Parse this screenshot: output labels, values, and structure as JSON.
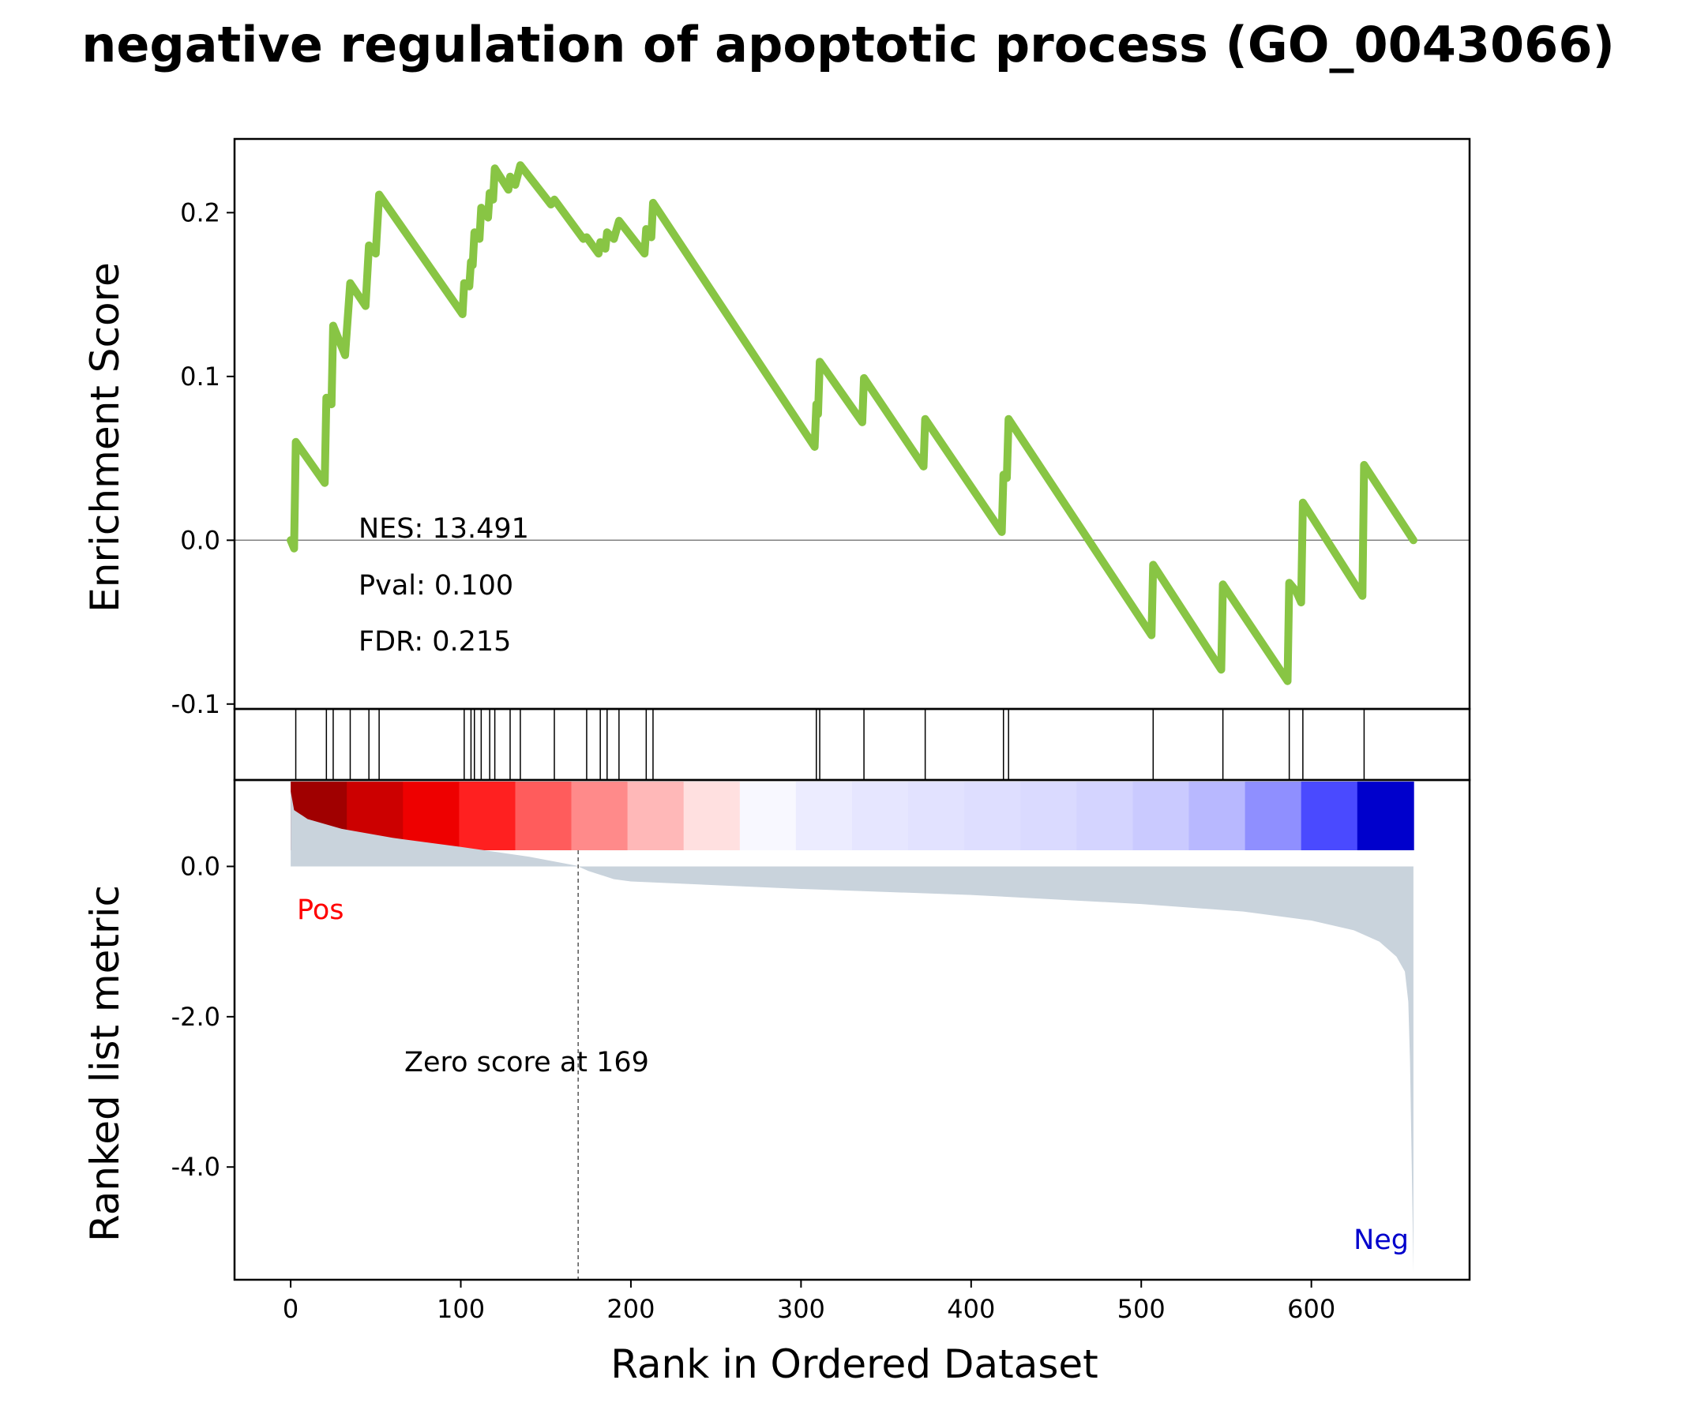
{
  "chart_data": {
    "type": "line",
    "title": "negative regulation of apoptotic process (GO_0043066)",
    "xlabel": "Rank in Ordered Dataset",
    "xlim": [
      -33,
      693
    ],
    "xticks": [
      "0",
      "100",
      "200",
      "300",
      "400",
      "500",
      "600"
    ],
    "xtick_values": [
      0,
      100,
      200,
      300,
      400,
      500,
      600
    ],
    "top_panel": {
      "ylabel": "Enrichment Score",
      "ylim": [
        -0.103,
        0.245
      ],
      "yticks": [
        "-0.1",
        "0.0",
        "0.1",
        "0.2"
      ],
      "ytick_values": [
        -0.1,
        0.0,
        0.1,
        0.2
      ],
      "line_color": "#88c544",
      "zero_line": true,
      "es_curve": [
        [
          0,
          0.0
        ],
        [
          2,
          -0.005
        ],
        [
          3,
          0.06
        ],
        [
          20,
          0.035
        ],
        [
          21,
          0.087
        ],
        [
          24,
          0.083
        ],
        [
          25,
          0.131
        ],
        [
          32,
          0.113
        ],
        [
          35,
          0.157
        ],
        [
          44,
          0.143
        ],
        [
          46,
          0.18
        ],
        [
          50,
          0.175
        ],
        [
          52,
          0.211
        ],
        [
          101,
          0.138
        ],
        [
          102,
          0.157
        ],
        [
          105,
          0.155
        ],
        [
          106,
          0.17
        ],
        [
          107,
          0.168
        ],
        [
          108,
          0.188
        ],
        [
          111,
          0.184
        ],
        [
          112,
          0.203
        ],
        [
          116,
          0.197
        ],
        [
          117,
          0.212
        ],
        [
          119,
          0.208
        ],
        [
          120,
          0.227
        ],
        [
          128,
          0.214
        ],
        [
          129,
          0.222
        ],
        [
          132,
          0.217
        ],
        [
          135,
          0.229
        ],
        [
          153,
          0.205
        ],
        [
          155,
          0.208
        ],
        [
          172,
          0.184
        ],
        [
          174,
          0.185
        ],
        [
          181,
          0.175
        ],
        [
          182,
          0.182
        ],
        [
          185,
          0.178
        ],
        [
          186,
          0.188
        ],
        [
          190,
          0.184
        ],
        [
          193,
          0.195
        ],
        [
          208,
          0.175
        ],
        [
          209,
          0.19
        ],
        [
          212,
          0.185
        ],
        [
          213,
          0.206
        ],
        [
          308,
          0.057
        ],
        [
          309,
          0.083
        ],
        [
          310,
          0.077
        ],
        [
          311,
          0.109
        ],
        [
          336,
          0.072
        ],
        [
          337,
          0.099
        ],
        [
          372,
          0.045
        ],
        [
          373,
          0.074
        ],
        [
          418,
          0.005
        ],
        [
          419,
          0.04
        ],
        [
          421,
          0.038
        ],
        [
          422,
          0.074
        ],
        [
          506,
          -0.058
        ],
        [
          507,
          -0.015
        ],
        [
          547,
          -0.079
        ],
        [
          548,
          -0.027
        ],
        [
          586,
          -0.086
        ],
        [
          587,
          -0.026
        ],
        [
          591,
          -0.031
        ],
        [
          594,
          -0.038
        ],
        [
          595,
          0.023
        ],
        [
          630,
          -0.034
        ],
        [
          631,
          0.046
        ],
        [
          660,
          0.0
        ]
      ],
      "stats": {
        "nes": "NES: 13.491",
        "pval": "Pval: 0.100",
        "fdr": "FDR: 0.215"
      }
    },
    "hits": [
      3,
      21,
      25,
      35,
      46,
      52,
      102,
      106,
      108,
      112,
      117,
      120,
      129,
      135,
      155,
      174,
      182,
      186,
      193,
      209,
      213,
      309,
      311,
      337,
      373,
      419,
      422,
      507,
      548,
      587,
      595,
      631
    ],
    "heatmap_colors": [
      "#a00000",
      "#cc0000",
      "#ee0000",
      "#ff2020",
      "#ff5c5c",
      "#ff8a8a",
      "#ffb8b8",
      "#ffe0e0",
      "#f8f8ff",
      "#ececff",
      "#e6e6ff",
      "#e2e2ff",
      "#dedeff",
      "#dadaff",
      "#d4d4ff",
      "#cacaff",
      "#b8b8ff",
      "#8f8fff",
      "#4a4aff",
      "#0000cc"
    ],
    "bottom_panel": {
      "ylabel": "Ranked list metric",
      "ylim": [
        -5.5,
        1.15
      ],
      "yticks": [
        "-4.0",
        "-2.0",
        "0.0"
      ],
      "ytick_values": [
        -4.0,
        -2.0,
        0.0
      ],
      "fill_color": "#c9d3dc",
      "metric_curve": [
        [
          0,
          1.0
        ],
        [
          2,
          0.75
        ],
        [
          10,
          0.63
        ],
        [
          30,
          0.5
        ],
        [
          60,
          0.38
        ],
        [
          100,
          0.26
        ],
        [
          140,
          0.13
        ],
        [
          168,
          0.01
        ],
        [
          175,
          -0.06
        ],
        [
          190,
          -0.17
        ],
        [
          200,
          -0.2
        ],
        [
          300,
          -0.3
        ],
        [
          400,
          -0.38
        ],
        [
          500,
          -0.5
        ],
        [
          560,
          -0.6
        ],
        [
          600,
          -0.72
        ],
        [
          625,
          -0.85
        ],
        [
          640,
          -1.0
        ],
        [
          650,
          -1.2
        ],
        [
          655,
          -1.4
        ],
        [
          657,
          -1.8
        ],
        [
          658,
          -2.6
        ],
        [
          659,
          -4.0
        ],
        [
          660,
          -5.4
        ]
      ],
      "zero_rank": 169,
      "zero_label": "Zero score at 169",
      "pos_label": "Pos",
      "neg_label": "Neg"
    }
  }
}
